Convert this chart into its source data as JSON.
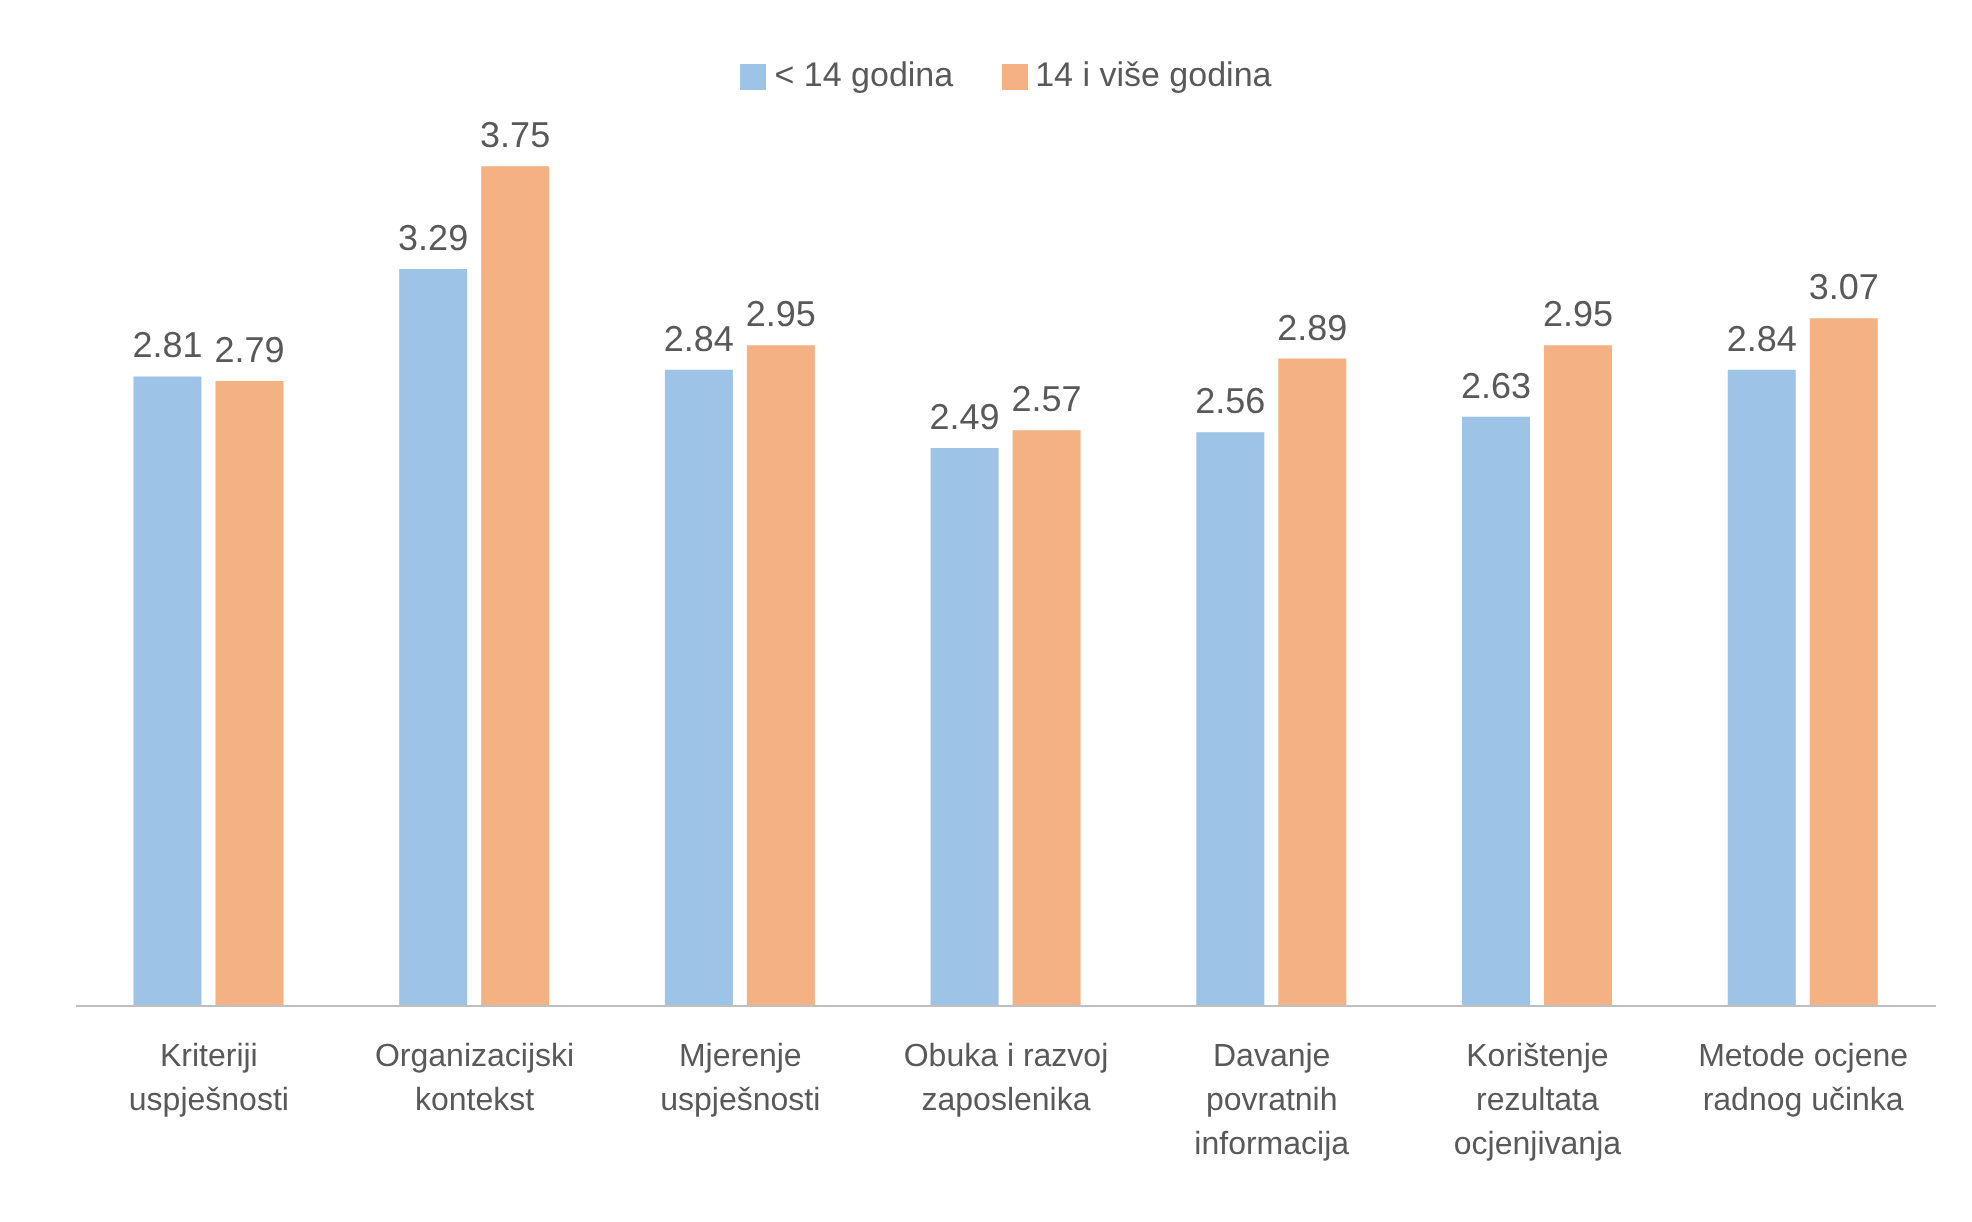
{
  "chart_data": {
    "type": "bar",
    "categories": [
      "Kriteriji uspješnosti",
      "Organizacijski kontekst",
      "Mjerenje uspješnosti",
      "Obuka i razvoj zaposlenika",
      "Davanje povratnih informacija",
      "Korištenje rezultata ocjenjivanja",
      "Metode ocjene radnog učinka"
    ],
    "series": [
      {
        "name": "< 14 godina",
        "color": "#9dc3e6",
        "values": [
          2.81,
          3.29,
          2.84,
          2.49,
          2.56,
          2.63,
          2.84
        ]
      },
      {
        "name": "14 i više godina",
        "color": "#f4b183",
        "values": [
          2.79,
          3.75,
          2.95,
          2.57,
          2.89,
          2.95,
          3.07
        ]
      }
    ],
    "tick_labels": "x",
    "data_labels": true,
    "legend": "top",
    "grid": false
  }
}
